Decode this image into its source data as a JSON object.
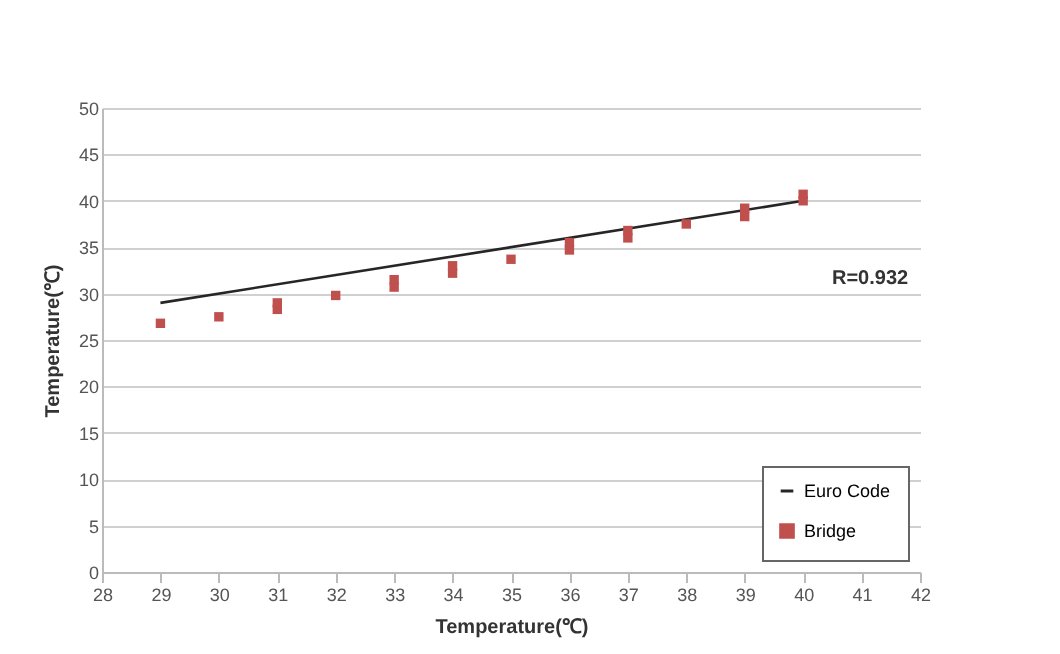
{
  "chart_data": {
    "type": "scatter",
    "xlabel": "Temperature(℃)",
    "ylabel": "Temperature(℃)",
    "xlim": [
      28,
      42
    ],
    "xticks": [
      28,
      29,
      30,
      31,
      32,
      33,
      34,
      35,
      36,
      37,
      38,
      39,
      40,
      41,
      42
    ],
    "ylim": [
      0,
      50
    ],
    "yticks": [
      0,
      5,
      10,
      15,
      20,
      25,
      30,
      35,
      40,
      45,
      50
    ],
    "grid": "y",
    "legend": "bottom right",
    "annotations": [
      "R=0.932"
    ],
    "series": [
      {
        "name": "Euro Code",
        "type": "line",
        "color": "#262626",
        "marker": "none",
        "x": [
          29,
          40
        ],
        "values": [
          29,
          40
        ]
      },
      {
        "name": "Bridge",
        "type": "scatter",
        "color": "#c0504d",
        "marker": "square",
        "x": [
          29,
          30,
          31,
          31,
          32,
          33,
          33,
          34,
          34,
          35,
          36,
          36,
          37,
          37,
          38,
          39,
          39,
          40,
          40
        ],
        "values": [
          26.8,
          27.5,
          28.3,
          29.0,
          29.8,
          30.7,
          31.5,
          32.2,
          33.0,
          33.7,
          34.7,
          35.5,
          36.0,
          36.8,
          37.5,
          38.3,
          39.2,
          40.0,
          40.7
        ]
      }
    ]
  }
}
